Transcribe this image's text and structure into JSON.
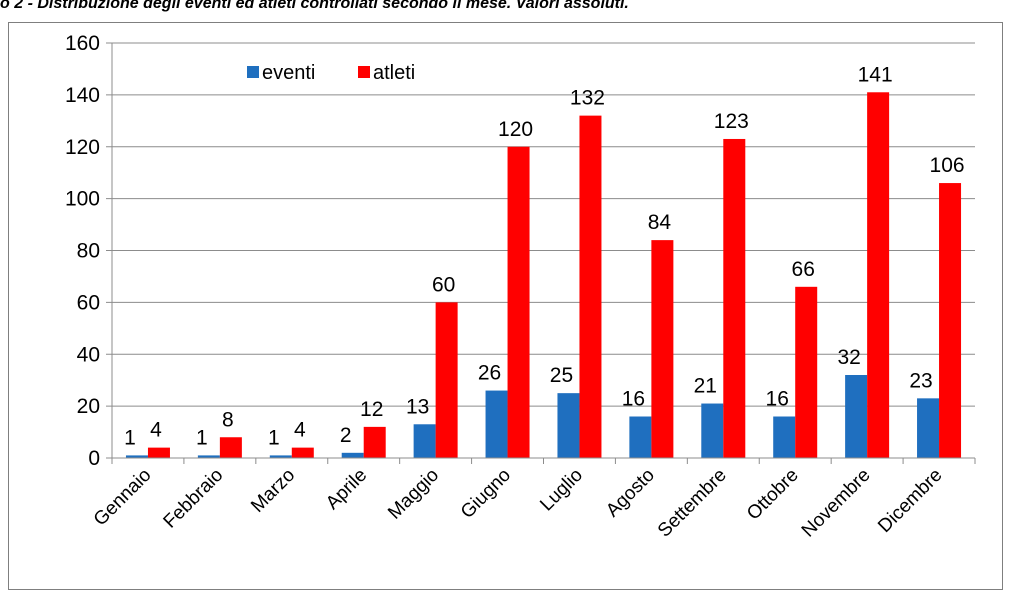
{
  "caption": "o 2 - Distribuzione degli eventi ed atleti controllati secondo il mese. Valori assoluti.",
  "chart_data": {
    "type": "bar",
    "categories": [
      "Gennaio",
      "Febbraio",
      "Marzo",
      "Aprile",
      "Maggio",
      "Giugno",
      "Luglio",
      "Agosto",
      "Settembre",
      "Ottobre",
      "Novembre",
      "Dicembre"
    ],
    "series": [
      {
        "name": "eventi",
        "color": "#1f6fbf",
        "values": [
          1,
          1,
          1,
          2,
          13,
          26,
          25,
          16,
          21,
          16,
          32,
          23
        ]
      },
      {
        "name": "atleti",
        "color": "#ff0000",
        "values": [
          4,
          8,
          4,
          12,
          60,
          120,
          132,
          84,
          123,
          66,
          141,
          106
        ]
      }
    ],
    "ylim": [
      0,
      160
    ],
    "yticks": [
      0,
      20,
      40,
      60,
      80,
      100,
      120,
      140,
      160
    ],
    "grid": true,
    "legend": "top-left",
    "data_labels": true
  }
}
